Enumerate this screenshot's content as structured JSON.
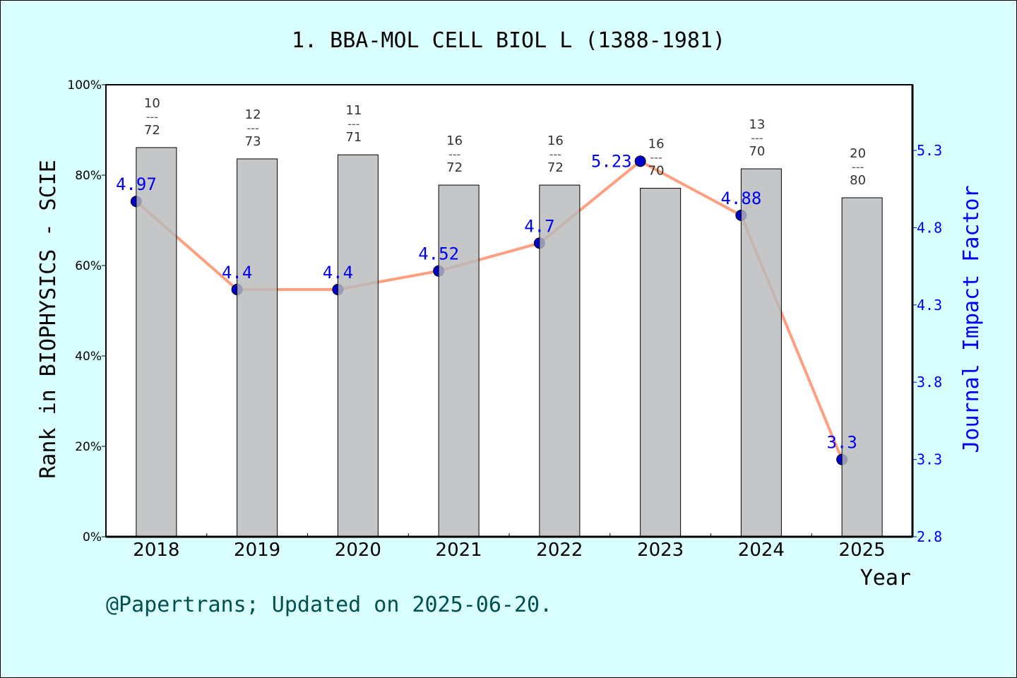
{
  "chart_data": {
    "type": "bar+line",
    "title": "1. BBA-MOL CELL BIOL L (1388-1981)",
    "xlabel": "Year",
    "ylabel_left": "Rank in BIOPHYSICS - SCIE",
    "ylabel_right": "Journal Impact Factor",
    "categories": [
      "2018",
      "2019",
      "2020",
      "2021",
      "2022",
      "2023",
      "2024",
      "2025"
    ],
    "rank": [
      10,
      12,
      11,
      16,
      16,
      16,
      13,
      20
    ],
    "total": [
      72,
      73,
      71,
      72,
      72,
      70,
      70,
      80
    ],
    "bar_percent": [
      86.1,
      83.6,
      84.5,
      77.8,
      77.8,
      77.1,
      81.4,
      75.0
    ],
    "impact_factor": [
      4.97,
      4.4,
      4.4,
      4.52,
      4.7,
      5.23,
      4.88,
      3.3
    ],
    "impact_factor_labels": [
      "4.97",
      "4.4",
      "4.4",
      "4.52",
      "4.7",
      "5.23",
      "4.88",
      "3.3"
    ],
    "ylim_left": [
      0,
      100
    ],
    "yticks_left": [
      "0%",
      "20%",
      "40%",
      "60%",
      "80%",
      "100%"
    ],
    "ylim_right": [
      2.8,
      5.725
    ],
    "yticks_right": [
      "2.8",
      "3.3",
      "3.8",
      "4.3",
      "4.8",
      "5.3"
    ],
    "grid": false,
    "colors": {
      "bar": "#b8b9bb",
      "line": "#ff9f7f",
      "point": "#0000cc",
      "right_axis": "#0000ff",
      "footer": "#005050",
      "background": "#d9ffff"
    }
  },
  "footer": "@Papertrans; Updated on 2025-06-20."
}
